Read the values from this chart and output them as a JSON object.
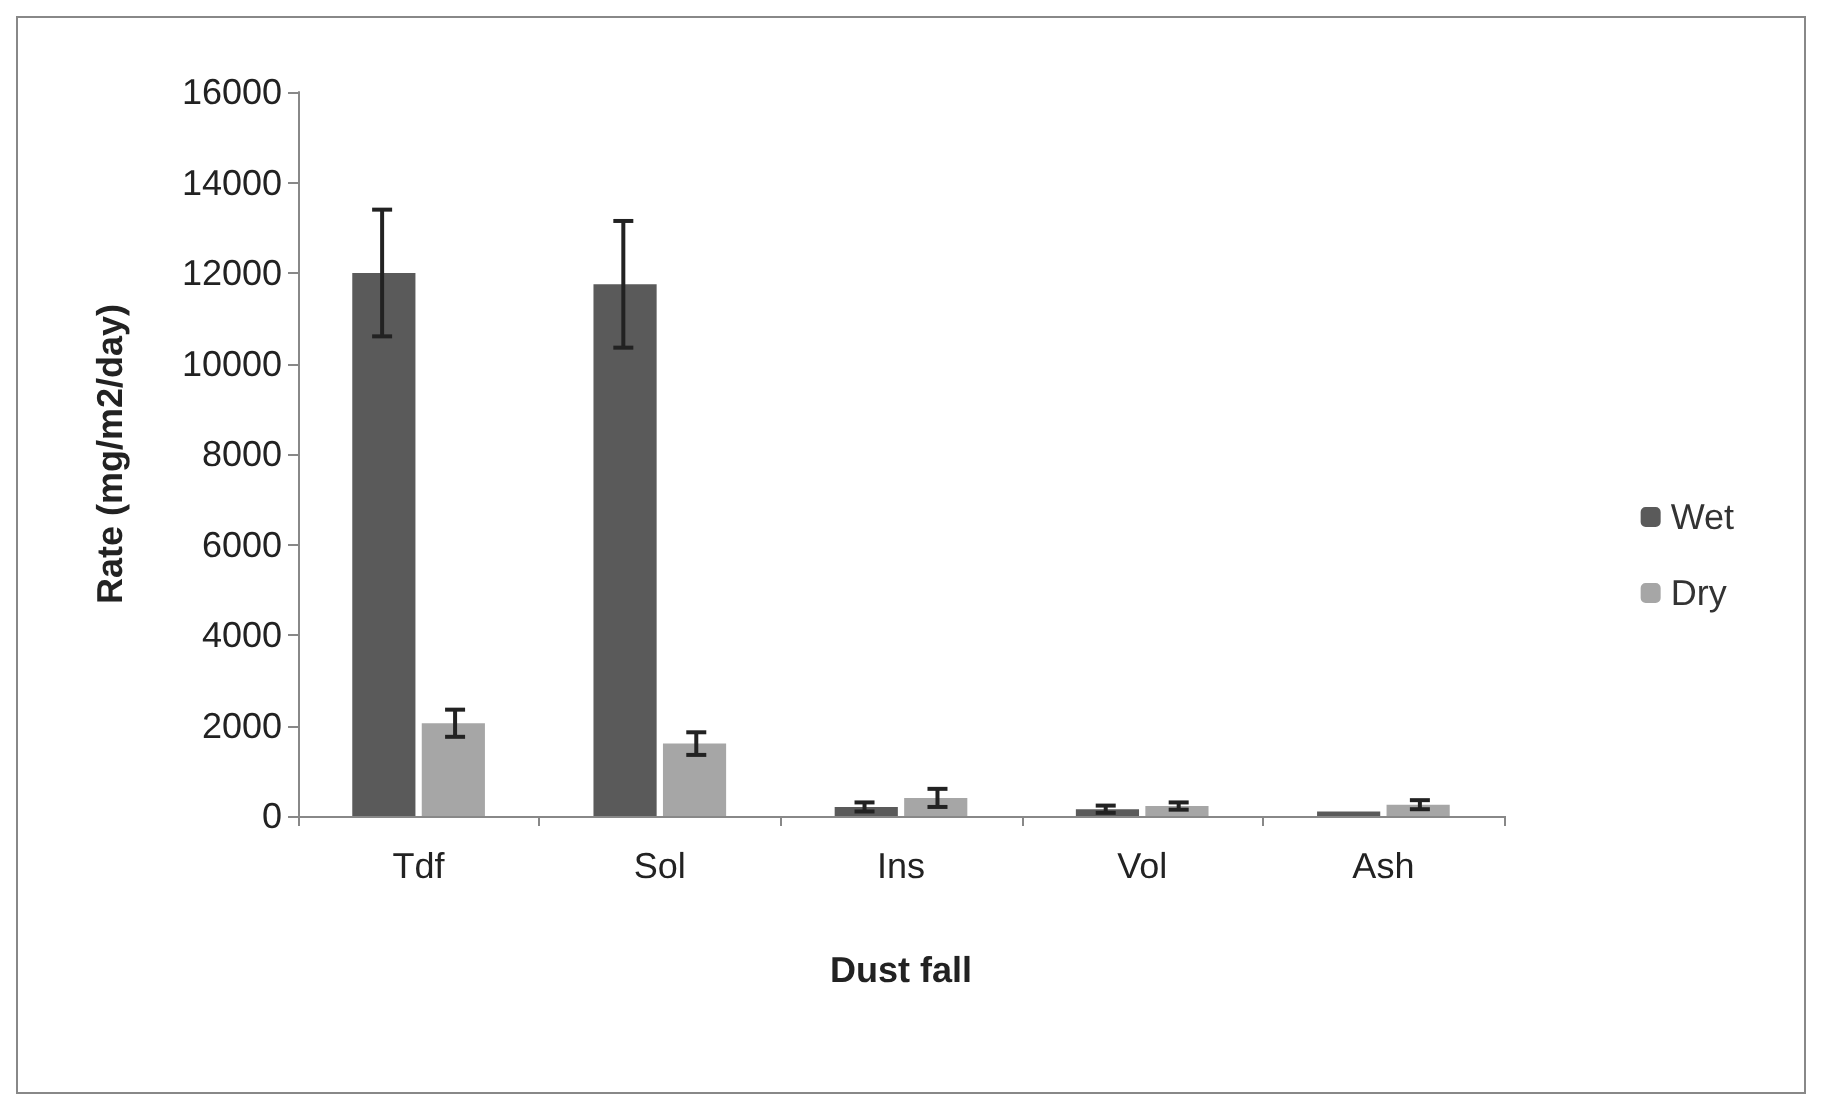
{
  "chart_data": {
    "type": "bar",
    "xlabel": "Dust fall",
    "ylabel": "Rate (mg/m2/day)",
    "categories": [
      "Tdf",
      "Sol",
      "Ins",
      "Vol",
      "Ash"
    ],
    "series": [
      {
        "name": "Wet",
        "color": "#5a5a5a",
        "values": [
          12000,
          11750,
          200,
          150,
          100
        ],
        "errors": [
          1400,
          1400,
          100,
          80,
          null
        ]
      },
      {
        "name": "Dry",
        "color": "#a6a6a6",
        "values": [
          2050,
          1600,
          400,
          220,
          250
        ],
        "errors": [
          300,
          250,
          200,
          80,
          100
        ]
      }
    ],
    "ylim": [
      0,
      16000
    ],
    "yticks": [
      0,
      2000,
      4000,
      6000,
      8000,
      10000,
      12000,
      14000,
      16000
    ],
    "grid": false,
    "legend": "right"
  }
}
